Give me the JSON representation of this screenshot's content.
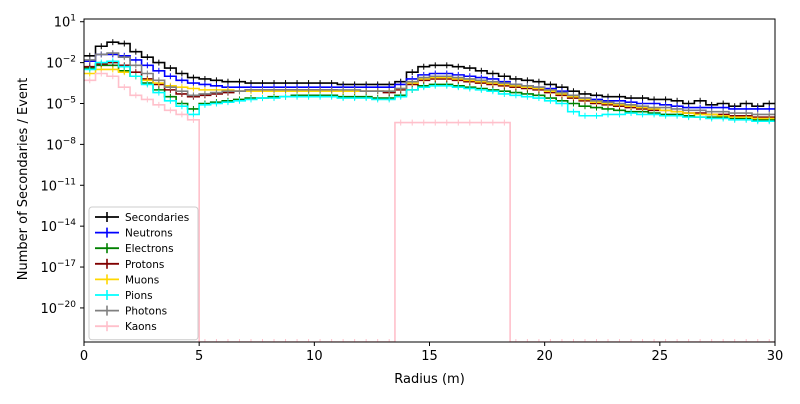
{
  "chart_data": {
    "type": "line",
    "title": "",
    "xlabel": "Radius (m)",
    "ylabel": "Number of Secondaries / Event",
    "xlim": [
      0,
      30
    ],
    "ylim_log10": [
      -22.5,
      1.2
    ],
    "yscale": "log",
    "x_ticks": [
      0,
      5,
      10,
      15,
      20,
      25,
      30
    ],
    "x_tick_labels": [
      "0",
      "5",
      "10",
      "15",
      "20",
      "25",
      "30"
    ],
    "y_ticks_log10": [
      1,
      -2,
      -5,
      -8,
      -11,
      -14,
      -17,
      -20
    ],
    "y_tick_labels": [
      {
        "base": "10",
        "exp": "1"
      },
      {
        "base": "10",
        "exp": "−2"
      },
      {
        "base": "10",
        "exp": "−5"
      },
      {
        "base": "10",
        "exp": "−8"
      },
      {
        "base": "10",
        "exp": "−11"
      },
      {
        "base": "10",
        "exp": "−14"
      },
      {
        "base": "10",
        "exp": "−17"
      },
      {
        "base": "10",
        "exp": "−20"
      }
    ],
    "grid": false,
    "legend_position": "lower-left",
    "bin_width_m": 0.5,
    "bin_edges_m": [
      0,
      0.5,
      1,
      1.5,
      2,
      2.5,
      3,
      3.5,
      4,
      4.5,
      5,
      5.5,
      6,
      6.5,
      7,
      7.5,
      8,
      8.5,
      9,
      9.5,
      10,
      10.5,
      11,
      11.5,
      12,
      12.5,
      13,
      13.5,
      14,
      14.5,
      15,
      15.5,
      16,
      16.5,
      17,
      17.5,
      18,
      18.5,
      19,
      19.5,
      20,
      20.5,
      21,
      21.5,
      22,
      22.5,
      23,
      23.5,
      24,
      24.5,
      25,
      25.5,
      26,
      26.5,
      27,
      27.5,
      28,
      28.5,
      29,
      29.5,
      30
    ],
    "series": [
      {
        "name": "Secondaries",
        "color": "#000000",
        "log10_values": [
          -1.5,
          -0.8,
          -0.5,
          -0.6,
          -1.2,
          -1.6,
          -2.0,
          -2.4,
          -2.8,
          -3.1,
          -3.2,
          -3.3,
          -3.4,
          -3.4,
          -3.5,
          -3.5,
          -3.5,
          -3.5,
          -3.5,
          -3.5,
          -3.5,
          -3.5,
          -3.6,
          -3.6,
          -3.6,
          -3.6,
          -3.6,
          -3.4,
          -2.7,
          -2.3,
          -2.2,
          -2.2,
          -2.3,
          -2.4,
          -2.6,
          -2.8,
          -3.0,
          -3.2,
          -3.3,
          -3.4,
          -3.6,
          -3.8,
          -4.1,
          -4.3,
          -4.4,
          -4.5,
          -4.5,
          -4.6,
          -4.6,
          -4.7,
          -4.7,
          -4.8,
          -5.0,
          -4.8,
          -5.1,
          -5.0,
          -5.2,
          -5.0,
          -5.2,
          -5.0
        ]
      },
      {
        "name": "Neutrons",
        "color": "#0000ff",
        "log10_values": [
          -1.9,
          -1.4,
          -1.4,
          -1.5,
          -1.8,
          -2.2,
          -2.6,
          -3.0,
          -3.3,
          -3.5,
          -3.6,
          -3.7,
          -3.8,
          -3.8,
          -3.8,
          -3.8,
          -3.8,
          -3.8,
          -3.8,
          -3.8,
          -3.8,
          -3.8,
          -3.8,
          -3.8,
          -3.8,
          -3.8,
          -3.8,
          -3.6,
          -3.2,
          -2.9,
          -2.8,
          -2.8,
          -2.9,
          -3.0,
          -3.1,
          -3.2,
          -3.4,
          -3.6,
          -3.7,
          -3.8,
          -3.9,
          -4.1,
          -4.4,
          -4.6,
          -4.7,
          -4.8,
          -4.8,
          -4.9,
          -5.0,
          -5.0,
          -5.1,
          -5.2,
          -5.3,
          -5.3,
          -5.3,
          -5.3,
          -5.4,
          -5.4,
          -5.4,
          -5.4
        ]
      },
      {
        "name": "Electrons",
        "color": "#008000",
        "log10_values": [
          -2.4,
          -2.2,
          -2.2,
          -2.6,
          -3.0,
          -3.5,
          -4.0,
          -4.5,
          -5.0,
          -5.4,
          -5.0,
          -4.9,
          -4.8,
          -4.7,
          -4.6,
          -4.6,
          -4.5,
          -4.5,
          -4.4,
          -4.4,
          -4.4,
          -4.4,
          -4.5,
          -4.5,
          -4.5,
          -4.6,
          -4.6,
          -4.4,
          -4.0,
          -3.7,
          -3.6,
          -3.6,
          -3.7,
          -3.8,
          -3.9,
          -4.0,
          -4.1,
          -4.2,
          -4.3,
          -4.4,
          -4.6,
          -4.8,
          -5.0,
          -5.2,
          -5.3,
          -5.4,
          -5.5,
          -5.6,
          -5.6,
          -5.7,
          -5.8,
          -5.8,
          -5.9,
          -6.0,
          -6.0,
          -6.0,
          -6.1,
          -6.1,
          -6.2,
          -6.2
        ]
      },
      {
        "name": "Protons",
        "color": "#800000",
        "log10_values": [
          -2.3,
          -2.1,
          -2.0,
          -2.2,
          -2.7,
          -3.2,
          -3.6,
          -4.0,
          -4.3,
          -4.5,
          -4.4,
          -4.3,
          -4.2,
          -4.1,
          -4.0,
          -4.0,
          -4.0,
          -4.0,
          -4.0,
          -4.0,
          -4.0,
          -4.0,
          -4.1,
          -4.1,
          -4.1,
          -4.1,
          -4.2,
          -4.0,
          -3.6,
          -3.3,
          -3.2,
          -3.2,
          -3.3,
          -3.4,
          -3.5,
          -3.6,
          -3.7,
          -3.8,
          -3.9,
          -4.0,
          -4.2,
          -4.4,
          -4.6,
          -4.8,
          -5.0,
          -5.1,
          -5.2,
          -5.3,
          -5.4,
          -5.5,
          -5.5,
          -5.6,
          -5.7,
          -5.7,
          -5.8,
          -5.8,
          -5.9,
          -5.9,
          -6.0,
          -6.0
        ]
      },
      {
        "name": "Muons",
        "color": "#ffd700",
        "log10_values": [
          -2.8,
          -2.5,
          -2.5,
          -2.7,
          -3.0,
          -3.3,
          -3.5,
          -3.7,
          -3.8,
          -3.9,
          -4.0,
          -4.0,
          -4.0,
          -4.1,
          -4.1,
          -4.1,
          -4.1,
          -4.1,
          -4.1,
          -4.1,
          -4.1,
          -4.1,
          -4.1,
          -4.1,
          -4.1,
          -4.1,
          -4.1,
          -3.9,
          -3.5,
          -3.2,
          -3.1,
          -3.1,
          -3.2,
          -3.3,
          -3.4,
          -3.5,
          -3.6,
          -3.7,
          -3.8,
          -3.9,
          -4.1,
          -4.3,
          -4.5,
          -4.7,
          -4.9,
          -5.0,
          -5.1,
          -5.2,
          -5.3,
          -5.4,
          -5.5,
          -5.6,
          -5.7,
          -5.8,
          -5.8,
          -5.9,
          -6.0,
          -6.0,
          -6.1,
          -6.1
        ]
      },
      {
        "name": "Pions",
        "color": "#00ffff",
        "log10_values": [
          -2.5,
          -2.0,
          -1.9,
          -2.3,
          -3.0,
          -3.6,
          -4.2,
          -4.8,
          -5.2,
          -5.8,
          -5.1,
          -5.0,
          -4.9,
          -4.8,
          -4.7,
          -4.6,
          -4.6,
          -4.5,
          -4.5,
          -4.5,
          -4.5,
          -4.5,
          -4.6,
          -4.6,
          -4.6,
          -4.7,
          -4.7,
          -4.5,
          -4.0,
          -3.8,
          -3.7,
          -3.7,
          -3.8,
          -3.9,
          -4.0,
          -4.1,
          -4.3,
          -4.4,
          -4.5,
          -4.6,
          -4.8,
          -5.0,
          -5.6,
          -5.9,
          -5.9,
          -5.8,
          -5.8,
          -5.7,
          -5.8,
          -5.8,
          -5.9,
          -5.9,
          -6.0,
          -6.0,
          -6.1,
          -6.1,
          -6.2,
          -6.2,
          -6.3,
          -6.3
        ]
      },
      {
        "name": "Photons",
        "color": "#808080",
        "log10_values": [
          -1.8,
          -1.4,
          -1.3,
          -1.6,
          -2.2,
          -2.8,
          -3.3,
          -3.8,
          -4.1,
          -4.4,
          -4.3,
          -4.2,
          -4.1,
          -4.1,
          -4.0,
          -4.0,
          -4.0,
          -4.0,
          -4.0,
          -4.0,
          -4.0,
          -4.0,
          -4.0,
          -4.0,
          -4.1,
          -4.1,
          -4.1,
          -3.9,
          -3.4,
          -3.1,
          -3.0,
          -3.0,
          -3.1,
          -3.2,
          -3.3,
          -3.4,
          -3.5,
          -3.6,
          -3.7,
          -3.8,
          -4.0,
          -4.2,
          -4.4,
          -4.6,
          -4.8,
          -4.9,
          -5.0,
          -5.1,
          -5.2,
          -5.3,
          -5.3,
          -5.4,
          -5.5,
          -5.5,
          -5.6,
          -5.6,
          -5.7,
          -5.7,
          -5.8,
          -5.8
        ]
      },
      {
        "name": "Kaons",
        "color": "#ffc0cb",
        "log10_values": [
          -3.3,
          -2.8,
          -3.0,
          -3.8,
          -4.4,
          -4.7,
          -5.1,
          -5.5,
          -5.8,
          -6.2,
          -22.5,
          -22.5,
          -22.5,
          -22.5,
          -22.5,
          -22.5,
          -22.5,
          -22.5,
          -22.5,
          -22.5,
          -22.5,
          -22.5,
          -22.5,
          -22.5,
          -22.5,
          -22.5,
          -22.5,
          -6.4,
          -6.4,
          -6.4,
          -6.4,
          -6.4,
          -6.4,
          -6.4,
          -6.4,
          -6.4,
          -6.4,
          -22.5,
          -22.5,
          -22.5,
          -22.5,
          -22.5,
          -22.5,
          -22.5,
          -22.5,
          -22.5,
          -22.5,
          -22.5,
          -22.5,
          -22.5,
          -22.5,
          -22.5,
          -22.5,
          -22.5,
          -22.5,
          -22.5,
          -22.5,
          -22.5,
          -22.5,
          -22.5
        ]
      }
    ]
  }
}
